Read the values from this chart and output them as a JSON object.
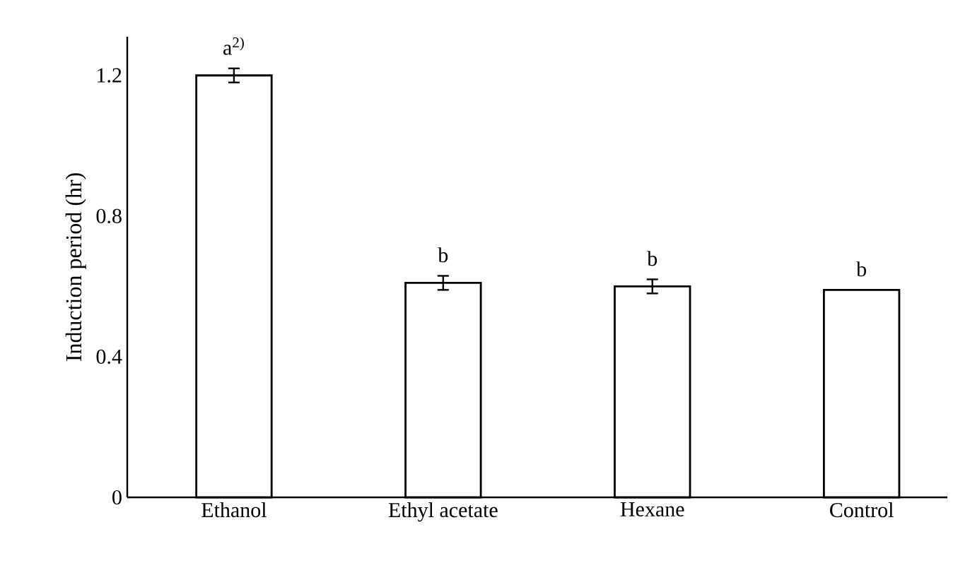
{
  "chart_data": {
    "type": "bar",
    "ylabel": "Induction period (hr)",
    "categories": [
      "Ethanol",
      "Ethyl acetate",
      "Hexane",
      "Control"
    ],
    "values": [
      1.2,
      0.61,
      0.6,
      0.59
    ],
    "errors": [
      0.02,
      0.02,
      0.02,
      null
    ],
    "color": "#ffffff",
    "ylim": [
      0,
      1.31
    ],
    "yticks": [
      0,
      0.4,
      0.8,
      1.2
    ],
    "annotations": [
      {
        "text": "a$^{2)}$",
        "x": "Ethanol",
        "y": 1.22
      },
      {
        "text": "b",
        "x": "Ethyl acetate",
        "y": 0.63
      },
      {
        "text": "b",
        "x": "Hexane",
        "y": 0.62
      },
      {
        "text": "b",
        "x": "Control",
        "y": 0.59
      }
    ]
  }
}
